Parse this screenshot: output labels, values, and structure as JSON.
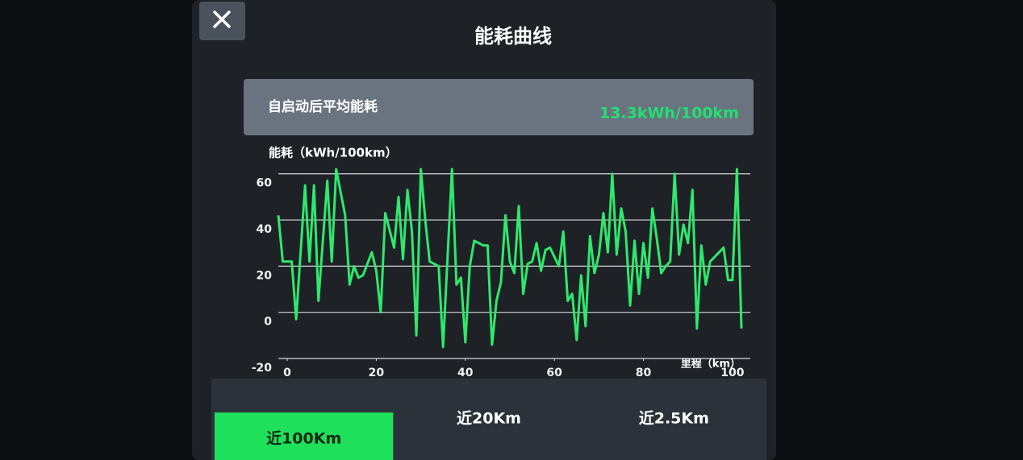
{
  "dialog": {
    "title": "能耗曲线",
    "summary": {
      "label": "自启动后平均能耗",
      "value": "13.3kWh/100km"
    }
  },
  "chart_data": {
    "type": "line",
    "ylabel": "能耗（kWh/100km）",
    "xlabel": "里程（km）",
    "x": [
      -2,
      -1,
      0,
      1,
      2,
      4,
      5,
      6,
      7,
      9,
      10,
      11,
      13,
      14,
      15,
      16,
      17,
      19,
      20,
      21,
      22,
      24,
      25,
      26,
      27,
      28,
      29,
      30,
      31,
      32,
      34,
      35,
      37,
      38,
      39,
      40,
      41,
      42,
      44,
      45,
      46,
      47,
      48,
      49,
      50,
      51,
      52,
      53,
      54,
      55,
      56,
      57,
      58,
      59,
      61,
      62,
      63,
      64,
      65,
      66,
      67,
      68,
      69,
      70,
      71,
      72,
      73,
      74,
      75,
      76,
      77,
      78,
      79,
      80,
      81,
      82,
      83,
      84,
      85,
      86,
      87,
      88,
      89,
      90,
      91,
      92,
      93,
      94,
      95,
      96,
      98,
      99,
      100,
      101,
      102
    ],
    "values": [
      42,
      22,
      22,
      22,
      -3,
      55,
      22,
      55,
      5,
      57,
      22,
      62,
      42,
      12,
      20,
      15,
      16,
      26,
      18,
      0,
      43,
      28,
      50,
      23,
      53,
      35,
      -10,
      62,
      40,
      22,
      20,
      -15,
      62,
      12,
      15,
      -13,
      20,
      31,
      29,
      29,
      -14,
      5,
      13,
      42,
      22,
      17,
      46,
      8,
      21,
      22,
      30,
      18,
      27,
      28,
      20,
      35,
      5,
      8,
      -12,
      16,
      -6,
      33,
      17,
      25,
      43,
      26,
      60,
      25,
      45,
      35,
      3,
      31,
      8,
      30,
      15,
      45,
      32,
      17,
      20,
      22,
      60,
      25,
      38,
      30,
      53,
      -7,
      29,
      12,
      22,
      24,
      28,
      14,
      14,
      62,
      -7
    ],
    "color": "#2fe86c",
    "xlim": [
      -2,
      104
    ],
    "xticks": [
      0,
      20,
      40,
      60,
      80,
      100
    ],
    "ylim": [
      -20,
      62
    ],
    "yticks": [
      -20,
      0,
      20,
      40,
      60
    ],
    "grid": true
  },
  "tabs": [
    "近100Km",
    "近20Km",
    "近2.5Km"
  ]
}
